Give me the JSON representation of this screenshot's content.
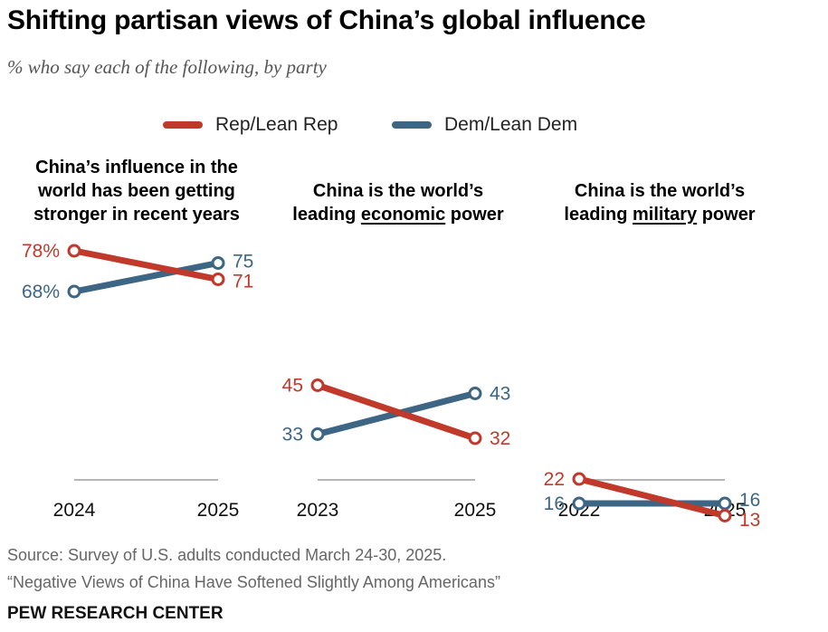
{
  "header": {
    "title": "Shifting partisan views of China’s global influence",
    "subtitle": "% who say each of the following, by party"
  },
  "legend": [
    {
      "label": "Rep/Lean Rep",
      "color": "#c0392b"
    },
    {
      "label": "Dem/Lean Dem",
      "color": "#3d6584"
    }
  ],
  "panels_text": [
    {
      "line1": "China’s influence in the",
      "line2": "world has been getting",
      "line3": "stronger in recent years"
    },
    {
      "line1": "China is the world’s",
      "line2_pre": "leading ",
      "line2_u": "economic",
      "line2_post": " power"
    },
    {
      "line1": "China is the world’s",
      "line2_pre": "leading ",
      "line2_u": "military",
      "line2_post": " power"
    }
  ],
  "chart_data": [
    {
      "type": "line",
      "title": "China’s influence in the world has been getting stronger in recent years",
      "x": [
        "2024",
        "2025"
      ],
      "series": [
        {
          "name": "Rep/Lean Rep",
          "values": [
            78,
            71
          ],
          "labels": [
            "78%",
            "71"
          ]
        },
        {
          "name": "Dem/Lean Dem",
          "values": [
            68,
            75
          ],
          "labels": [
            "68%",
            "75"
          ]
        }
      ]
    },
    {
      "type": "line",
      "title": "China is the world’s leading economic power",
      "x": [
        "2023",
        "2025"
      ],
      "series": [
        {
          "name": "Rep/Lean Rep",
          "values": [
            45,
            32
          ],
          "labels": [
            "45",
            "32"
          ]
        },
        {
          "name": "Dem/Lean Dem",
          "values": [
            33,
            43
          ],
          "labels": [
            "33",
            "43"
          ]
        }
      ]
    },
    {
      "type": "line",
      "title": "China is the world’s leading military power",
      "x": [
        "2022",
        "2025"
      ],
      "series": [
        {
          "name": "Rep/Lean Rep",
          "values": [
            22,
            13
          ],
          "labels": [
            "22",
            "13"
          ]
        },
        {
          "name": "Dem/Lean Dem",
          "values": [
            16,
            16
          ],
          "labels": [
            "16",
            "16"
          ]
        }
      ]
    }
  ],
  "footer": {
    "source": "Source: Survey of U.S. adults conducted March 24-30, 2025.",
    "report": "“Negative Views of China Have Softened Slightly Among Americans”",
    "brand": "PEW RESEARCH CENTER"
  }
}
